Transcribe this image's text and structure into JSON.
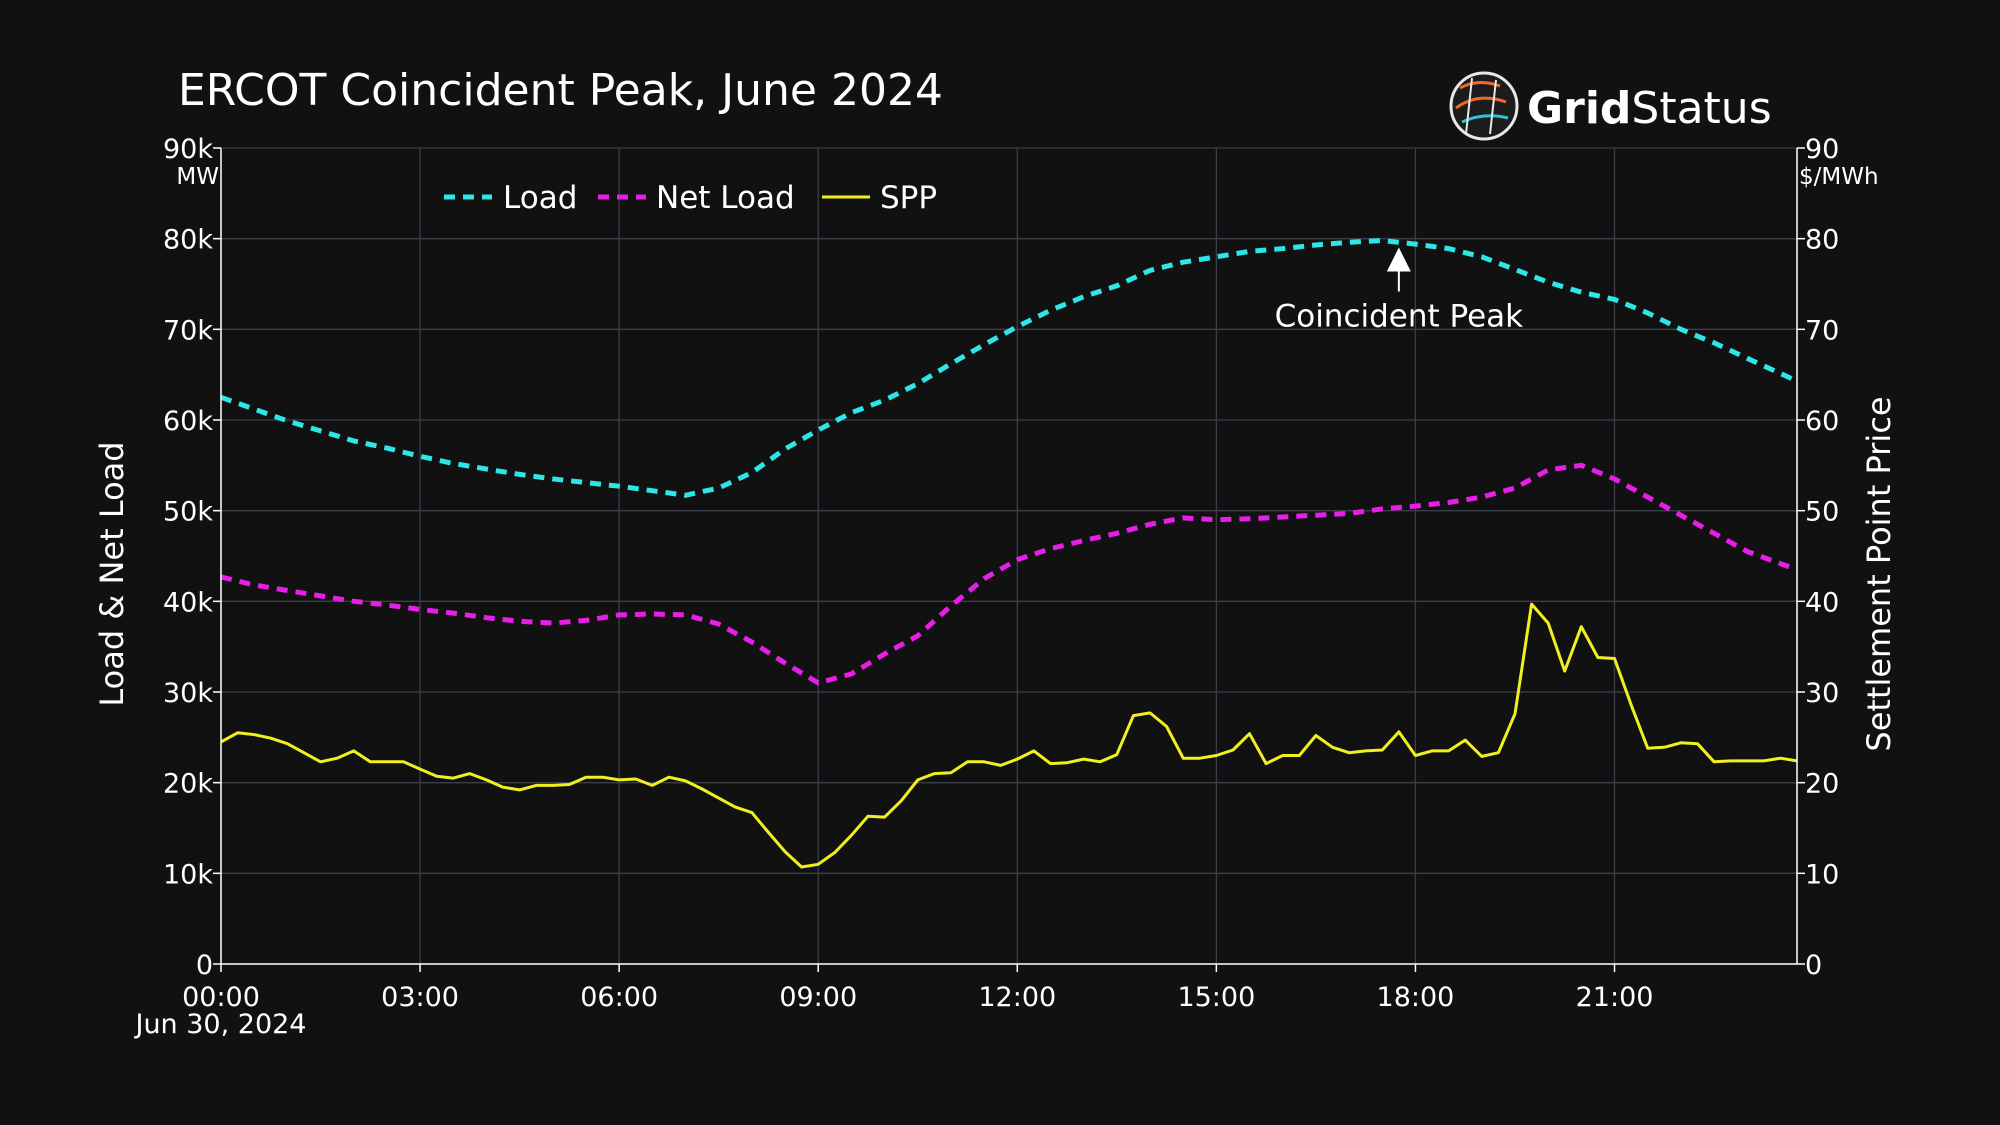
{
  "brand": {
    "part1": "Grid",
    "part2": "Status"
  },
  "chart_data": {
    "type": "line",
    "title": "ERCOT Coincident Peak, June 2024",
    "x_axis": {
      "ticks": [
        "00:00",
        "03:00",
        "06:00",
        "09:00",
        "12:00",
        "15:00",
        "18:00",
        "21:00"
      ],
      "date_label": "Jun 30, 2024",
      "range_hours": [
        0,
        23.75
      ]
    },
    "y_left": {
      "title": "Load & Net Load",
      "unit": "MW",
      "ticks": [
        "0",
        "10k",
        "20k",
        "30k",
        "40k",
        "50k",
        "60k",
        "70k",
        "80k",
        "90k"
      ],
      "range": [
        0,
        90000
      ]
    },
    "y_right": {
      "title": "Settlement Point Price",
      "unit": "$/MWh",
      "ticks": [
        "0",
        "10",
        "20",
        "30",
        "40",
        "50",
        "60",
        "70",
        "80",
        "90"
      ],
      "range": [
        0,
        90
      ]
    },
    "grid": true,
    "legend_position": "top-left",
    "series": [
      {
        "name": "Load",
        "axis": "left",
        "style": "dashed",
        "color": "#2ee6e6",
        "x_hours": [
          0,
          0.5,
          1,
          1.5,
          2,
          2.5,
          3,
          3.5,
          4,
          4.5,
          5,
          5.5,
          6,
          6.5,
          7,
          7.5,
          8,
          8.5,
          9,
          9.5,
          10,
          10.5,
          11,
          11.5,
          12,
          12.5,
          13,
          13.5,
          14,
          14.5,
          15,
          15.5,
          16,
          16.5,
          17,
          17.5,
          18,
          18.5,
          19,
          19.5,
          20,
          20.5,
          21,
          21.5,
          22,
          22.5,
          23,
          23.75
        ],
        "values": [
          62500,
          61200,
          59900,
          58800,
          57700,
          56900,
          56000,
          55200,
          54600,
          54000,
          53500,
          53100,
          52700,
          52200,
          51700,
          52500,
          54200,
          56800,
          58900,
          60800,
          62200,
          64000,
          66200,
          68300,
          70300,
          72100,
          73600,
          74800,
          76500,
          77400,
          78000,
          78600,
          78900,
          79300,
          79600,
          79800,
          79400,
          78900,
          78000,
          76600,
          75200,
          74100,
          73300,
          71800,
          70000,
          68500,
          66800,
          64300
        ]
      },
      {
        "name": "Net Load",
        "axis": "left",
        "style": "dashed",
        "color": "#e61ee6",
        "x_hours": [
          0,
          0.5,
          1,
          1.5,
          2,
          2.5,
          3,
          3.5,
          4,
          4.5,
          5,
          5.5,
          6,
          6.5,
          7,
          7.5,
          8,
          8.5,
          9,
          9.5,
          10,
          10.5,
          11,
          11.5,
          12,
          12.5,
          13,
          13.5,
          14,
          14.5,
          15,
          15.5,
          16,
          16.5,
          17,
          17.5,
          18,
          18.5,
          19,
          19.5,
          20,
          20.5,
          21,
          21.5,
          22,
          22.5,
          23,
          23.75
        ],
        "values": [
          42700,
          41800,
          41200,
          40600,
          40000,
          39600,
          39100,
          38700,
          38200,
          37800,
          37600,
          37900,
          38500,
          38600,
          38500,
          37500,
          35500,
          33200,
          31000,
          32000,
          34200,
          36200,
          39500,
          42500,
          44600,
          45800,
          46700,
          47500,
          48500,
          49200,
          49000,
          49100,
          49300,
          49500,
          49700,
          50200,
          50500,
          50900,
          51500,
          52500,
          54500,
          55000,
          53500,
          51500,
          49500,
          47500,
          45500,
          43500
        ]
      },
      {
        "name": "SPP",
        "axis": "right",
        "style": "solid",
        "color": "#f0f020",
        "x_hours": [
          0,
          0.25,
          0.5,
          0.75,
          1,
          1.25,
          1.5,
          1.75,
          2,
          2.25,
          2.5,
          2.75,
          3,
          3.25,
          3.5,
          3.75,
          4,
          4.25,
          4.5,
          4.75,
          5,
          5.25,
          5.5,
          5.75,
          6,
          6.25,
          6.5,
          6.75,
          7,
          7.25,
          7.5,
          7.75,
          8,
          8.25,
          8.5,
          8.75,
          9,
          9.25,
          9.5,
          9.75,
          10,
          10.25,
          10.5,
          10.75,
          11,
          11.25,
          11.5,
          11.75,
          12,
          12.25,
          12.5,
          12.75,
          13,
          13.25,
          13.5,
          13.75,
          14,
          14.25,
          14.5,
          14.75,
          15,
          15.25,
          15.5,
          15.75,
          16,
          16.25,
          16.5,
          16.75,
          17,
          17.25,
          17.5,
          17.75,
          18,
          18.25,
          18.5,
          18.75,
          19,
          19.25,
          19.5,
          19.75,
          20,
          20.25,
          20.5,
          20.75,
          21,
          21.25,
          21.5,
          21.75,
          22,
          22.25,
          22.5,
          22.75,
          23,
          23.25,
          23.5,
          23.75
        ],
        "values": [
          24.5,
          25.5,
          25.3,
          24.9,
          24.3,
          23.3,
          22.3,
          22.7,
          23.5,
          22.3,
          22.3,
          22.3,
          21.5,
          20.7,
          20.5,
          21.0,
          20.3,
          19.5,
          19.2,
          19.7,
          19.7,
          19.8,
          20.6,
          20.6,
          20.3,
          20.4,
          19.7,
          20.6,
          20.2,
          19.3,
          18.3,
          17.3,
          16.7,
          14.5,
          12.4,
          10.7,
          11.0,
          12.3,
          14.2,
          16.3,
          16.2,
          18.0,
          20.3,
          21.0,
          21.1,
          22.3,
          22.3,
          21.9,
          22.6,
          23.5,
          22.1,
          22.2,
          22.6,
          22.3,
          23.1,
          27.4,
          27.7,
          26.2,
          22.7,
          22.7,
          23.0,
          23.6,
          25.4,
          22.1,
          23.0,
          23.0,
          25.2,
          23.9,
          23.3,
          23.5,
          23.6,
          25.6,
          23.0,
          23.5,
          23.5,
          24.7,
          22.9,
          23.3,
          27.6,
          39.7,
          37.6,
          32.3,
          37.2,
          33.8,
          33.7,
          28.6,
          23.8,
          23.9,
          24.4,
          24.3,
          22.3,
          22.4,
          22.4,
          22.4,
          22.7,
          22.4
        ]
      }
    ],
    "annotations": [
      {
        "text": "Coincident Peak",
        "x_hours": 17.75,
        "y": 79800,
        "axis": "left",
        "arrow": true
      }
    ]
  }
}
